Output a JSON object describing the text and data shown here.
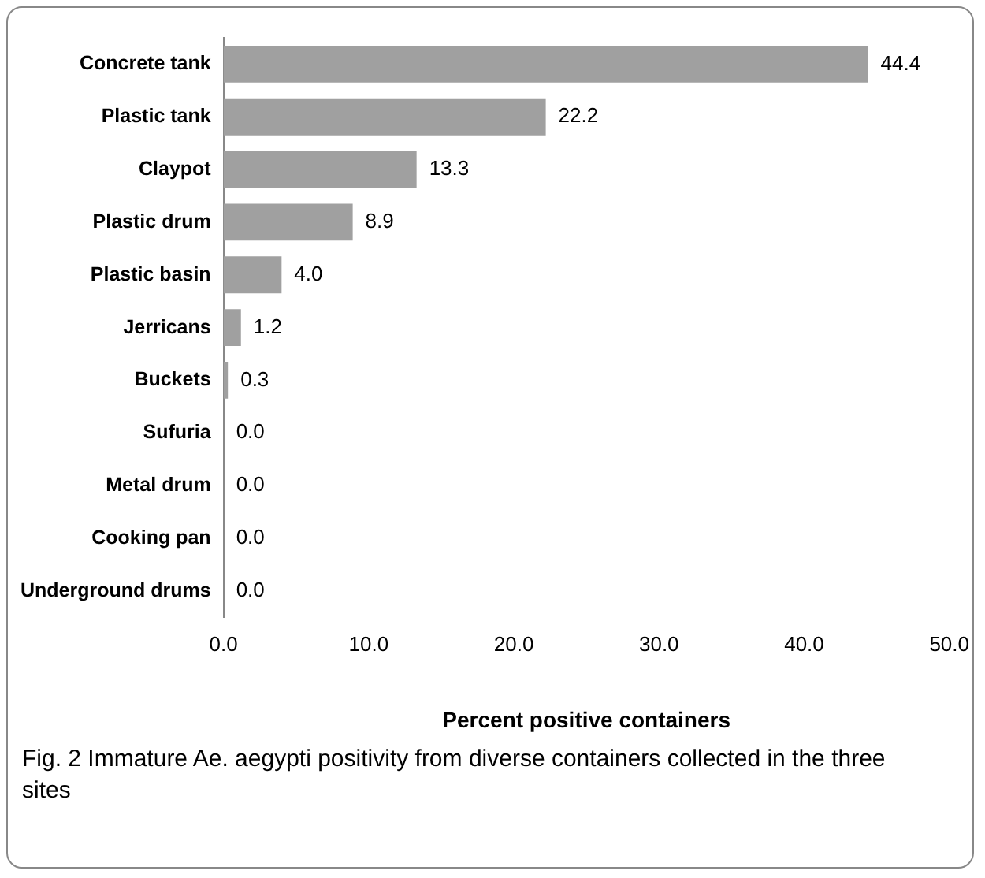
{
  "chart_data": {
    "type": "bar",
    "orientation": "horizontal",
    "categories": [
      "Concrete tank",
      "Plastic tank",
      "Claypot",
      "Plastic drum",
      "Plastic basin",
      "Jerricans",
      "Buckets",
      "Sufuria",
      "Metal drum",
      "Cooking pan",
      "Underground drums"
    ],
    "values": [
      44.4,
      22.2,
      13.3,
      8.9,
      4.0,
      1.2,
      0.3,
      0.0,
      0.0,
      0.0,
      0.0
    ],
    "value_labels": [
      "44.4",
      "22.2",
      "13.3",
      "8.9",
      "4.0",
      "1.2",
      "0.3",
      "0.0",
      "0.0",
      "0.0",
      "0.0"
    ],
    "color": "#a0a0a0",
    "xlabel": "Percent positive containers",
    "xlim": [
      0,
      50
    ],
    "xticks": [
      {
        "value": 0,
        "label": "0.0"
      },
      {
        "value": 10,
        "label": "10.0"
      },
      {
        "value": 20,
        "label": "20.0"
      },
      {
        "value": 30,
        "label": "30.0"
      },
      {
        "value": 40,
        "label": "40.0"
      },
      {
        "value": 50,
        "label": "50.0"
      }
    ],
    "grid": false,
    "legend": false,
    "annotations": [
      "Fig. 2 Immature Ae. aegypti positivity from diverse containers collected in the three sites"
    ]
  }
}
